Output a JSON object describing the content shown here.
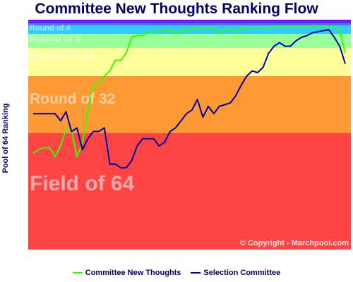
{
  "chart_data": {
    "type": "line",
    "title": "Committee New Thoughts Ranking Flow",
    "ylabel": "Pool of 64 Ranking",
    "xlabel": "",
    "ylim": [
      64,
      1
    ],
    "bands": [
      {
        "label": "Round of 4",
        "from": 1,
        "to": 4,
        "color": "#33ccff"
      },
      {
        "label": "Round of 8",
        "from": 5,
        "to": 8,
        "color": "#99ff99"
      },
      {
        "label": "Round of 16",
        "from": 9,
        "to": 16,
        "color": "#ffff99"
      },
      {
        "label": "Round of 32",
        "from": 17,
        "to": 32,
        "color": "#ff9933"
      },
      {
        "label": "Field of 64",
        "from": 33,
        "to": 64,
        "color": "#ff4444"
      }
    ],
    "top_strip_colors": [
      "#7f00ff",
      "#3333ff",
      "#6666ff"
    ],
    "series": [
      {
        "name": "Committee New Thoughts",
        "color": "#33ff00",
        "points": [
          [
            0,
            38
          ],
          [
            1,
            37
          ],
          [
            2,
            36.5
          ],
          [
            3,
            36.5
          ],
          [
            4,
            39
          ],
          [
            5,
            36
          ],
          [
            6,
            31.5
          ],
          [
            7,
            31.5
          ],
          [
            8,
            39
          ],
          [
            9,
            35
          ],
          [
            10,
            26
          ],
          [
            11,
            19
          ],
          [
            12,
            18.5
          ],
          [
            13,
            16.5
          ],
          [
            14,
            15
          ],
          [
            15,
            12
          ],
          [
            16,
            12
          ],
          [
            17,
            10
          ],
          [
            18,
            5.5
          ],
          [
            19,
            5
          ],
          [
            20,
            5
          ],
          [
            21,
            3.5
          ],
          [
            22,
            3.5
          ],
          [
            23,
            3
          ],
          [
            24,
            3
          ],
          [
            25,
            2.5
          ],
          [
            26,
            4
          ],
          [
            27,
            3.2
          ],
          [
            28,
            2.8
          ],
          [
            29,
            2.5
          ],
          [
            30,
            2
          ],
          [
            31,
            2
          ],
          [
            32,
            1.5
          ],
          [
            33,
            2
          ],
          [
            34,
            4
          ],
          [
            35,
            2.5
          ],
          [
            36,
            2.5
          ],
          [
            37,
            3.5
          ],
          [
            38,
            2
          ],
          [
            39,
            2
          ],
          [
            40,
            1.5
          ],
          [
            41,
            1.5
          ],
          [
            42,
            1.5
          ],
          [
            43,
            2
          ],
          [
            44,
            1.2
          ],
          [
            45,
            1
          ],
          [
            46,
            1
          ],
          [
            47,
            1
          ],
          [
            48,
            1
          ],
          [
            49,
            1
          ],
          [
            50,
            1
          ],
          [
            51,
            0.8
          ],
          [
            52,
            1
          ],
          [
            53,
            1
          ],
          [
            54,
            1
          ],
          [
            55,
            1
          ],
          [
            56,
            2.5
          ],
          [
            57,
            10
          ]
        ]
      },
      {
        "name": "Selection Committee",
        "color": "#0000aa",
        "points": [
          [
            0,
            27
          ],
          [
            1,
            27
          ],
          [
            2,
            27
          ],
          [
            3,
            27
          ],
          [
            4,
            27
          ],
          [
            5,
            29
          ],
          [
            6,
            26.5
          ],
          [
            7,
            32
          ],
          [
            8,
            31
          ],
          [
            9,
            37
          ],
          [
            10,
            34
          ],
          [
            11,
            32
          ],
          [
            12,
            32
          ],
          [
            13,
            31
          ],
          [
            14,
            41
          ],
          [
            15,
            41
          ],
          [
            16,
            42
          ],
          [
            17,
            42
          ],
          [
            18,
            40
          ],
          [
            19,
            36
          ],
          [
            20,
            34
          ],
          [
            21,
            34
          ],
          [
            22,
            34
          ],
          [
            23,
            36
          ],
          [
            24,
            35
          ],
          [
            25,
            32
          ],
          [
            26,
            31
          ],
          [
            27,
            29
          ],
          [
            28,
            27
          ],
          [
            29,
            26
          ],
          [
            30,
            23
          ],
          [
            31,
            28
          ],
          [
            32,
            25
          ],
          [
            33,
            27
          ],
          [
            34,
            25
          ],
          [
            35,
            24.5
          ],
          [
            36,
            24
          ],
          [
            37,
            22
          ],
          [
            38,
            19
          ],
          [
            39,
            16.5
          ],
          [
            40,
            15
          ],
          [
            41,
            15.5
          ],
          [
            42,
            14
          ],
          [
            43,
            10
          ],
          [
            44,
            8
          ],
          [
            45,
            7
          ],
          [
            46,
            8
          ],
          [
            47,
            8
          ],
          [
            48,
            6.5
          ],
          [
            49,
            5.5
          ],
          [
            50,
            5
          ],
          [
            51,
            4
          ],
          [
            52,
            3.5
          ],
          [
            53,
            3
          ],
          [
            54,
            2.5
          ],
          [
            55,
            5.5
          ],
          [
            56,
            8
          ],
          [
            57,
            13
          ]
        ]
      }
    ]
  },
  "copyright": "© Copyright - Marchpool.com"
}
